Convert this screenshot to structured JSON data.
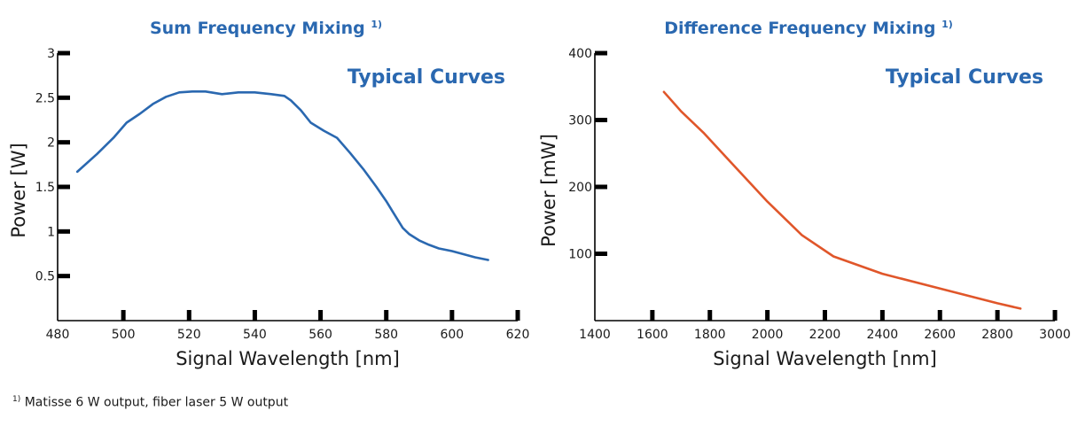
{
  "footnote": {
    "marker": "1)",
    "text": "Matisse 6 W output, fiber laser 5 W output"
  },
  "chart_data": [
    {
      "type": "line",
      "title": "Sum Frequency Mixing",
      "title_marker": "1)",
      "annotation": "Typical Curves",
      "xlabel": "Signal Wavelength [nm]",
      "ylabel": "Power [W]",
      "xlim": [
        480,
        620
      ],
      "ylim": [
        0,
        3
      ],
      "xticks": [
        480,
        500,
        520,
        540,
        560,
        580,
        600,
        620
      ],
      "yticks": [
        0.5,
        1,
        1.5,
        2,
        2.5,
        3
      ],
      "ytick_labels": [
        "0.5",
        "1",
        "1.5",
        "2",
        "2.5",
        "3"
      ],
      "grid": false,
      "series_color": "#2a68b0",
      "series": [
        {
          "x": [
            486,
            492,
            497,
            501,
            505,
            509,
            513,
            517,
            521,
            525,
            530,
            535,
            540,
            545,
            549,
            551,
            554,
            557,
            561,
            565,
            569,
            573,
            577,
            580,
            582,
            585,
            587,
            590,
            593,
            596,
            600,
            604,
            607,
            611
          ],
          "values": [
            1.67,
            1.87,
            2.05,
            2.22,
            2.32,
            2.43,
            2.51,
            2.56,
            2.57,
            2.57,
            2.54,
            2.56,
            2.56,
            2.54,
            2.52,
            2.47,
            2.36,
            2.22,
            2.13,
            2.05,
            1.88,
            1.7,
            1.5,
            1.34,
            1.22,
            1.04,
            0.97,
            0.9,
            0.85,
            0.81,
            0.78,
            0.74,
            0.71,
            0.68
          ]
        }
      ]
    },
    {
      "type": "line",
      "title": "Difference Frequency Mixing",
      "title_marker": "1)",
      "annotation": "Typical Curves",
      "xlabel": "Signal Wavelength [nm]",
      "ylabel": "Power [mW]",
      "xlim": [
        1400,
        3000
      ],
      "ylim": [
        0,
        400
      ],
      "xticks": [
        1400,
        1600,
        1800,
        2000,
        2200,
        2400,
        2600,
        2800,
        3000
      ],
      "yticks": [
        100,
        200,
        300,
        400
      ],
      "ytick_labels": [
        "100",
        "200",
        "300",
        "400"
      ],
      "grid": false,
      "series_color": "#e0562a",
      "series": [
        {
          "x": [
            1640,
            1700,
            1780,
            1870,
            2000,
            2120,
            2230,
            2400,
            2600,
            2800,
            2880
          ],
          "values": [
            342,
            313,
            280,
            238,
            178,
            128,
            96,
            70,
            48,
            26,
            18
          ]
        }
      ]
    }
  ]
}
